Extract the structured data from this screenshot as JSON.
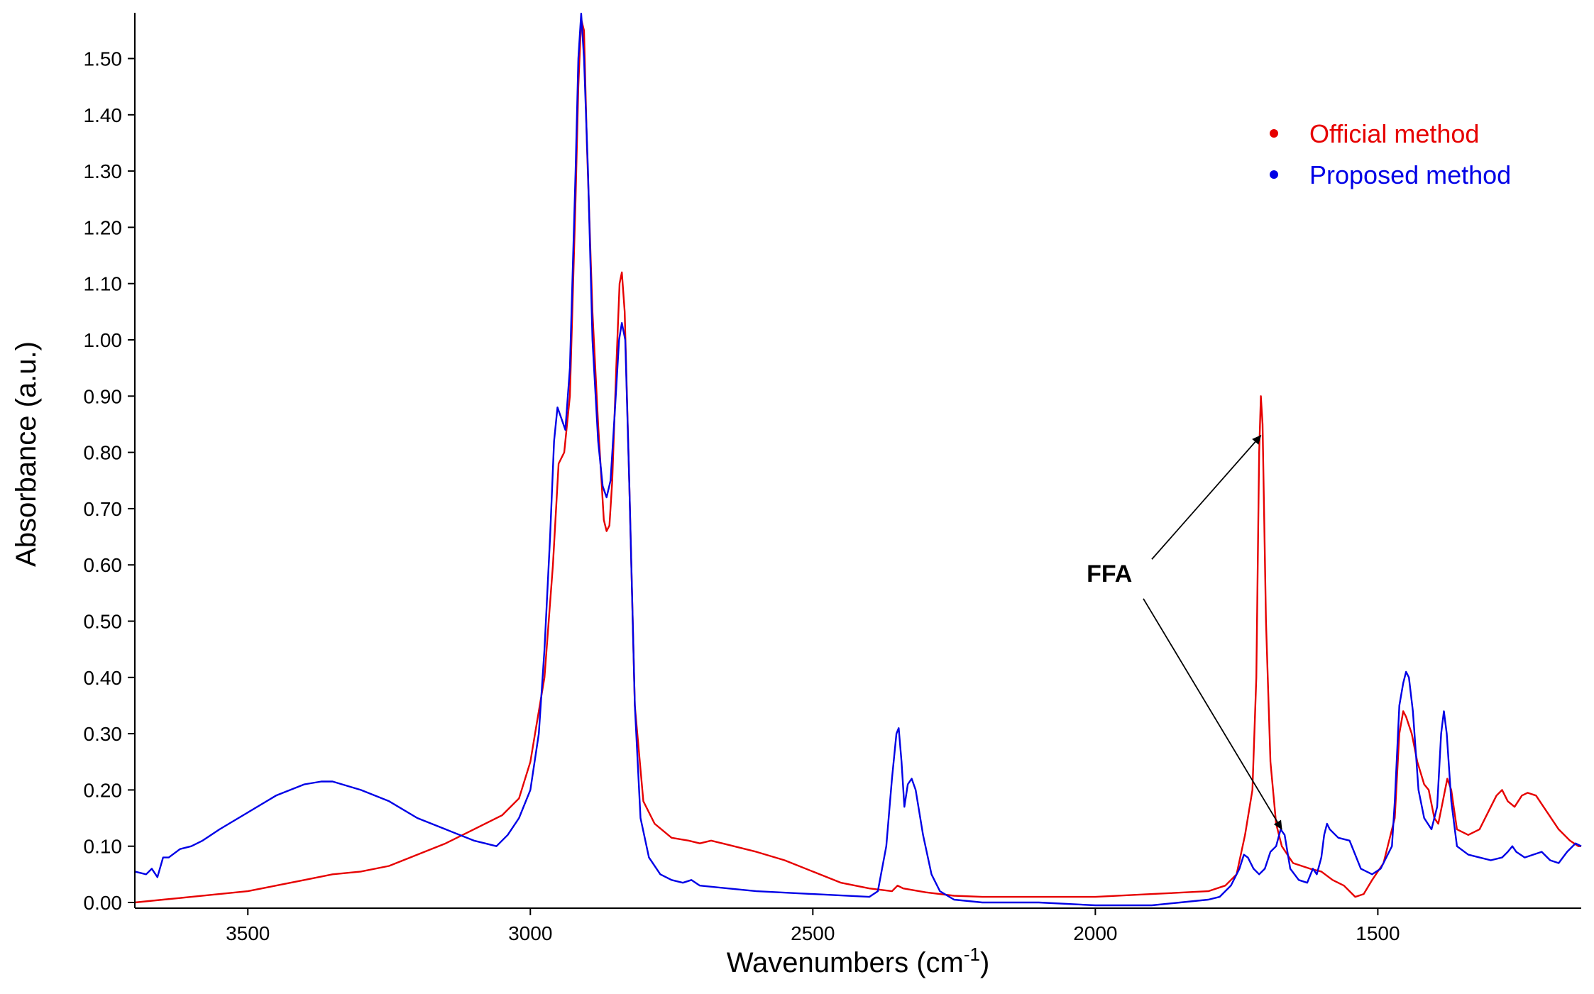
{
  "chart_data": {
    "type": "line",
    "xlabel": "Wavenumbers (cm",
    "xlabel_sup": "-1",
    "xlabel_end": ")",
    "ylabel": "Absorbance (a.u.)",
    "xlim": [
      3700,
      1140
    ],
    "ylim": [
      0,
      1.58
    ],
    "x_reversed": true,
    "grid": false,
    "legend_placement": "top-right",
    "x_ticks": [
      3500,
      3000,
      2500,
      2000,
      1500
    ],
    "x_tick_labels": [
      "3500",
      "3000",
      "2500",
      "2000",
      "1500"
    ],
    "y_ticks": [
      0.0,
      0.1,
      0.2,
      0.3,
      0.4,
      0.5,
      0.6,
      0.7,
      0.8,
      0.9,
      1.0,
      1.1,
      1.2,
      1.3,
      1.4,
      1.5
    ],
    "y_tick_labels": [
      "0.00",
      "0.10",
      "0.20",
      "0.30",
      "0.40",
      "0.50",
      "0.60",
      "0.70",
      "0.80",
      "0.90",
      "1.00",
      "1.10",
      "1.20",
      "1.30",
      "1.40",
      "1.50"
    ],
    "series": [
      {
        "name": "Official method",
        "color": "#e60000",
        "points": [
          [
            3700,
            0.0
          ],
          [
            3650,
            0.005
          ],
          [
            3600,
            0.01
          ],
          [
            3550,
            0.015
          ],
          [
            3500,
            0.02
          ],
          [
            3450,
            0.03
          ],
          [
            3400,
            0.04
          ],
          [
            3350,
            0.05
          ],
          [
            3300,
            0.055
          ],
          [
            3250,
            0.065
          ],
          [
            3200,
            0.085
          ],
          [
            3150,
            0.105
          ],
          [
            3100,
            0.13
          ],
          [
            3050,
            0.155
          ],
          [
            3020,
            0.185
          ],
          [
            3000,
            0.25
          ],
          [
            2990,
            0.31
          ],
          [
            2975,
            0.4
          ],
          [
            2960,
            0.6
          ],
          [
            2950,
            0.78
          ],
          [
            2940,
            0.8
          ],
          [
            2930,
            0.9
          ],
          [
            2920,
            1.25
          ],
          [
            2915,
            1.45
          ],
          [
            2910,
            1.57
          ],
          [
            2905,
            1.55
          ],
          [
            2900,
            1.35
          ],
          [
            2890,
            1.05
          ],
          [
            2880,
            0.85
          ],
          [
            2870,
            0.68
          ],
          [
            2865,
            0.66
          ],
          [
            2860,
            0.67
          ],
          [
            2855,
            0.75
          ],
          [
            2848,
            0.95
          ],
          [
            2842,
            1.1
          ],
          [
            2838,
            1.12
          ],
          [
            2833,
            1.05
          ],
          [
            2825,
            0.75
          ],
          [
            2815,
            0.35
          ],
          [
            2800,
            0.18
          ],
          [
            2780,
            0.14
          ],
          [
            2750,
            0.115
          ],
          [
            2720,
            0.11
          ],
          [
            2700,
            0.105
          ],
          [
            2680,
            0.11
          ],
          [
            2660,
            0.105
          ],
          [
            2600,
            0.09
          ],
          [
            2550,
            0.075
          ],
          [
            2500,
            0.055
          ],
          [
            2450,
            0.035
          ],
          [
            2400,
            0.025
          ],
          [
            2360,
            0.02
          ],
          [
            2350,
            0.03
          ],
          [
            2340,
            0.025
          ],
          [
            2300,
            0.018
          ],
          [
            2250,
            0.012
          ],
          [
            2200,
            0.01
          ],
          [
            2100,
            0.01
          ],
          [
            2000,
            0.01
          ],
          [
            1900,
            0.015
          ],
          [
            1800,
            0.02
          ],
          [
            1770,
            0.03
          ],
          [
            1750,
            0.05
          ],
          [
            1735,
            0.12
          ],
          [
            1722,
            0.2
          ],
          [
            1715,
            0.4
          ],
          [
            1710,
            0.8
          ],
          [
            1707,
            0.9
          ],
          [
            1704,
            0.85
          ],
          [
            1698,
            0.5
          ],
          [
            1690,
            0.25
          ],
          [
            1680,
            0.14
          ],
          [
            1670,
            0.1
          ],
          [
            1650,
            0.07
          ],
          [
            1620,
            0.06
          ],
          [
            1600,
            0.055
          ],
          [
            1580,
            0.04
          ],
          [
            1560,
            0.03
          ],
          [
            1540,
            0.01
          ],
          [
            1525,
            0.015
          ],
          [
            1510,
            0.04
          ],
          [
            1490,
            0.07
          ],
          [
            1470,
            0.15
          ],
          [
            1462,
            0.3
          ],
          [
            1455,
            0.34
          ],
          [
            1450,
            0.33
          ],
          [
            1440,
            0.3
          ],
          [
            1430,
            0.25
          ],
          [
            1418,
            0.21
          ],
          [
            1410,
            0.2
          ],
          [
            1400,
            0.15
          ],
          [
            1393,
            0.14
          ],
          [
            1385,
            0.18
          ],
          [
            1377,
            0.22
          ],
          [
            1370,
            0.2
          ],
          [
            1360,
            0.13
          ],
          [
            1340,
            0.12
          ],
          [
            1320,
            0.13
          ],
          [
            1300,
            0.17
          ],
          [
            1290,
            0.19
          ],
          [
            1280,
            0.2
          ],
          [
            1270,
            0.18
          ],
          [
            1258,
            0.17
          ],
          [
            1245,
            0.19
          ],
          [
            1235,
            0.195
          ],
          [
            1220,
            0.19
          ],
          [
            1200,
            0.16
          ],
          [
            1180,
            0.13
          ],
          [
            1160,
            0.11
          ],
          [
            1145,
            0.1
          ],
          [
            1140,
            0.1
          ]
        ]
      },
      {
        "name": "Proposed method",
        "color": "#0000e6",
        "points": [
          [
            3700,
            0.055
          ],
          [
            3680,
            0.05
          ],
          [
            3670,
            0.06
          ],
          [
            3660,
            0.045
          ],
          [
            3650,
            0.08
          ],
          [
            3640,
            0.08
          ],
          [
            3620,
            0.095
          ],
          [
            3600,
            0.1
          ],
          [
            3580,
            0.11
          ],
          [
            3550,
            0.13
          ],
          [
            3500,
            0.16
          ],
          [
            3450,
            0.19
          ],
          [
            3400,
            0.21
          ],
          [
            3370,
            0.215
          ],
          [
            3350,
            0.215
          ],
          [
            3300,
            0.2
          ],
          [
            3250,
            0.18
          ],
          [
            3200,
            0.15
          ],
          [
            3150,
            0.13
          ],
          [
            3100,
            0.11
          ],
          [
            3080,
            0.105
          ],
          [
            3060,
            0.1
          ],
          [
            3040,
            0.12
          ],
          [
            3020,
            0.15
          ],
          [
            3000,
            0.2
          ],
          [
            2985,
            0.3
          ],
          [
            2975,
            0.45
          ],
          [
            2965,
            0.65
          ],
          [
            2958,
            0.82
          ],
          [
            2952,
            0.88
          ],
          [
            2945,
            0.86
          ],
          [
            2938,
            0.84
          ],
          [
            2930,
            0.95
          ],
          [
            2920,
            1.3
          ],
          [
            2915,
            1.5
          ],
          [
            2910,
            1.58
          ],
          [
            2905,
            1.5
          ],
          [
            2898,
            1.3
          ],
          [
            2890,
            1.0
          ],
          [
            2880,
            0.82
          ],
          [
            2872,
            0.74
          ],
          [
            2865,
            0.72
          ],
          [
            2858,
            0.75
          ],
          [
            2850,
            0.88
          ],
          [
            2843,
            1.0
          ],
          [
            2838,
            1.03
          ],
          [
            2832,
            1.0
          ],
          [
            2825,
            0.75
          ],
          [
            2815,
            0.35
          ],
          [
            2805,
            0.15
          ],
          [
            2790,
            0.08
          ],
          [
            2770,
            0.05
          ],
          [
            2750,
            0.04
          ],
          [
            2730,
            0.035
          ],
          [
            2715,
            0.04
          ],
          [
            2700,
            0.03
          ],
          [
            2650,
            0.025
          ],
          [
            2600,
            0.02
          ],
          [
            2500,
            0.015
          ],
          [
            2400,
            0.01
          ],
          [
            2385,
            0.02
          ],
          [
            2370,
            0.1
          ],
          [
            2360,
            0.22
          ],
          [
            2352,
            0.3
          ],
          [
            2348,
            0.31
          ],
          [
            2343,
            0.25
          ],
          [
            2338,
            0.17
          ],
          [
            2332,
            0.21
          ],
          [
            2325,
            0.22
          ],
          [
            2318,
            0.2
          ],
          [
            2305,
            0.12
          ],
          [
            2290,
            0.05
          ],
          [
            2275,
            0.02
          ],
          [
            2250,
            0.005
          ],
          [
            2200,
            0.0
          ],
          [
            2100,
            0.0
          ],
          [
            2000,
            -0.005
          ],
          [
            1900,
            -0.005
          ],
          [
            1850,
            0.0
          ],
          [
            1800,
            0.005
          ],
          [
            1780,
            0.01
          ],
          [
            1760,
            0.03
          ],
          [
            1745,
            0.06
          ],
          [
            1737,
            0.085
          ],
          [
            1730,
            0.08
          ],
          [
            1720,
            0.06
          ],
          [
            1710,
            0.05
          ],
          [
            1700,
            0.06
          ],
          [
            1690,
            0.09
          ],
          [
            1680,
            0.1
          ],
          [
            1672,
            0.13
          ],
          [
            1665,
            0.12
          ],
          [
            1655,
            0.06
          ],
          [
            1640,
            0.04
          ],
          [
            1625,
            0.035
          ],
          [
            1615,
            0.06
          ],
          [
            1608,
            0.05
          ],
          [
            1600,
            0.08
          ],
          [
            1595,
            0.12
          ],
          [
            1590,
            0.14
          ],
          [
            1585,
            0.13
          ],
          [
            1570,
            0.115
          ],
          [
            1550,
            0.11
          ],
          [
            1530,
            0.06
          ],
          [
            1510,
            0.05
          ],
          [
            1495,
            0.06
          ],
          [
            1485,
            0.08
          ],
          [
            1475,
            0.1
          ],
          [
            1470,
            0.18
          ],
          [
            1462,
            0.35
          ],
          [
            1455,
            0.39
          ],
          [
            1450,
            0.41
          ],
          [
            1445,
            0.4
          ],
          [
            1438,
            0.34
          ],
          [
            1428,
            0.2
          ],
          [
            1418,
            0.15
          ],
          [
            1405,
            0.13
          ],
          [
            1395,
            0.17
          ],
          [
            1388,
            0.3
          ],
          [
            1383,
            0.34
          ],
          [
            1378,
            0.3
          ],
          [
            1370,
            0.18
          ],
          [
            1360,
            0.1
          ],
          [
            1340,
            0.085
          ],
          [
            1320,
            0.08
          ],
          [
            1300,
            0.075
          ],
          [
            1280,
            0.08
          ],
          [
            1270,
            0.09
          ],
          [
            1262,
            0.1
          ],
          [
            1255,
            0.09
          ],
          [
            1240,
            0.08
          ],
          [
            1225,
            0.085
          ],
          [
            1210,
            0.09
          ],
          [
            1195,
            0.075
          ],
          [
            1180,
            0.07
          ],
          [
            1165,
            0.09
          ],
          [
            1150,
            0.105
          ],
          [
            1140,
            0.1
          ]
        ]
      }
    ],
    "annotations": [
      {
        "text": "FFA",
        "x": 1975,
        "y": 0.57
      }
    ],
    "annotation_arrows": [
      {
        "from": [
          1900,
          0.61
        ],
        "to": [
          1707,
          0.83
        ]
      },
      {
        "from": [
          1915,
          0.54
        ],
        "to": [
          1670,
          0.13
        ]
      }
    ]
  }
}
